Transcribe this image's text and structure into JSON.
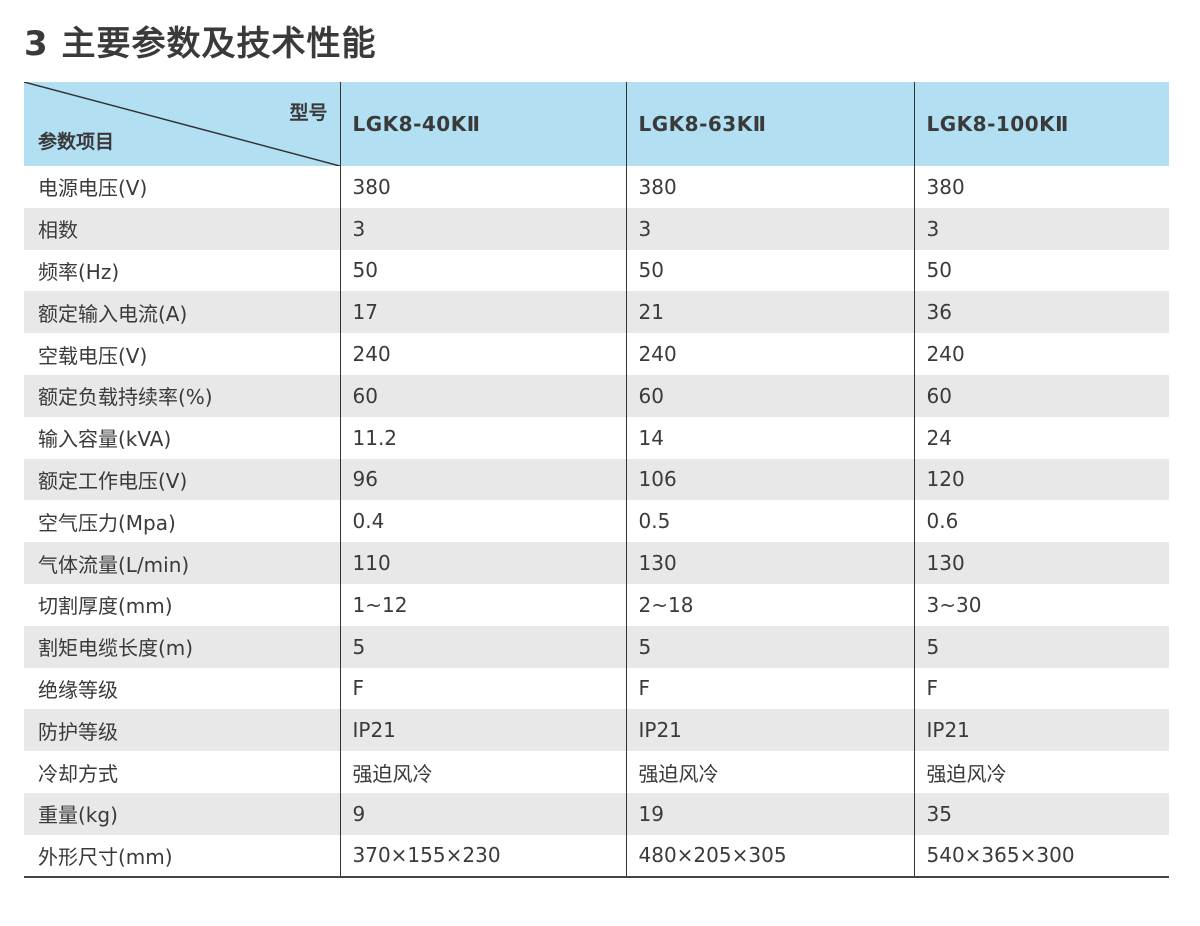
{
  "title": "3 主要参数及技术性能",
  "table": {
    "header": {
      "corner_top": "型号",
      "corner_bottom": "参数项目",
      "models": [
        "LGK8-40KⅡ",
        "LGK8-63KⅡ",
        "LGK8-100KⅡ"
      ]
    },
    "rows": [
      {
        "label": "电源电压(V)",
        "values": [
          "380",
          "380",
          "380"
        ]
      },
      {
        "label": "相数",
        "values": [
          "3",
          "3",
          "3"
        ]
      },
      {
        "label": "频率(Hz)",
        "values": [
          "50",
          "50",
          "50"
        ]
      },
      {
        "label": "额定输入电流(A)",
        "values": [
          "17",
          "21",
          "36"
        ]
      },
      {
        "label": "空载电压(V)",
        "values": [
          "240",
          "240",
          "240"
        ]
      },
      {
        "label": "额定负载持续率(%)",
        "values": [
          "60",
          "60",
          "60"
        ]
      },
      {
        "label": "输入容量(kVA)",
        "values": [
          "11.2",
          "14",
          "24"
        ]
      },
      {
        "label": "额定工作电压(V)",
        "values": [
          "96",
          "106",
          "120"
        ]
      },
      {
        "label": "空气压力(Mpa)",
        "values": [
          "0.4",
          "0.5",
          "0.6"
        ]
      },
      {
        "label": "气体流量(L/min)",
        "values": [
          "110",
          "130",
          "130"
        ]
      },
      {
        "label": "切割厚度(mm)",
        "values": [
          "1~12",
          "2~18",
          "3~30"
        ]
      },
      {
        "label": "割矩电缆长度(m)",
        "values": [
          "5",
          "5",
          "5"
        ]
      },
      {
        "label": "绝缘等级",
        "values": [
          "F",
          "F",
          "F"
        ]
      },
      {
        "label": "防护等级",
        "values": [
          "IP21",
          "IP21",
          "IP21"
        ]
      },
      {
        "label": "冷却方式",
        "values": [
          "强迫风冷",
          "强迫风冷",
          "强迫风冷"
        ]
      },
      {
        "label": "重量(kg)",
        "values": [
          "9",
          "19",
          "35"
        ]
      },
      {
        "label": "外形尺寸(mm)",
        "values": [
          "370×155×230",
          "480×205×305",
          "540×365×300"
        ]
      }
    ]
  },
  "colors": {
    "header_bg": "#b3dff3",
    "stripe_bg": "#e8e8e8",
    "text": "#3a3a3a",
    "rule": "#333333"
  }
}
